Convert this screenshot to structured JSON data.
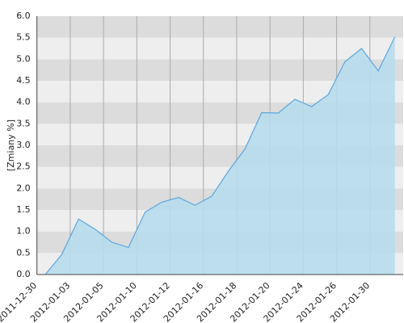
{
  "chart_data": {
    "type": "area",
    "y_label": "[Zmiany %]",
    "categories": [
      "2011-12-30",
      null,
      "2012-01-03",
      null,
      "2012-01-05",
      null,
      "2012-01-10",
      null,
      "2012-01-12",
      null,
      "2012-01-16",
      null,
      "2012-01-18",
      null,
      "2012-01-20",
      null,
      "2012-01-24",
      null,
      "2012-01-26",
      null,
      "2012-01-30",
      null
    ],
    "values": [
      0.0,
      0.47,
      1.29,
      1.05,
      0.75,
      0.63,
      1.45,
      1.68,
      1.79,
      1.61,
      1.82,
      2.4,
      2.92,
      3.76,
      3.75,
      4.07,
      3.9,
      4.18,
      4.94,
      5.25,
      4.73,
      5.52
    ],
    "color": "#5ba7e0",
    "fill": "#b6dcec",
    "ylim": [
      0,
      6
    ],
    "yticks": [
      {
        "value": 0,
        "label": "0.0"
      },
      {
        "value": 0.5,
        "label": "0.5"
      },
      {
        "value": 1,
        "label": "1.0"
      },
      {
        "value": 1.5,
        "label": "1.5"
      },
      {
        "value": 2,
        "label": "2.0"
      },
      {
        "value": 2.5,
        "label": "2.5"
      },
      {
        "value": 3,
        "label": "3.0"
      },
      {
        "value": 3.5,
        "label": "3.5"
      },
      {
        "value": 4,
        "label": "4.0"
      },
      {
        "value": 4.5,
        "label": "4.5"
      },
      {
        "value": 5,
        "label": "5.0"
      },
      {
        "value": 5.5,
        "label": "5.5"
      },
      {
        "value": 6,
        "label": "6.0"
      }
    ],
    "grid": true
  }
}
